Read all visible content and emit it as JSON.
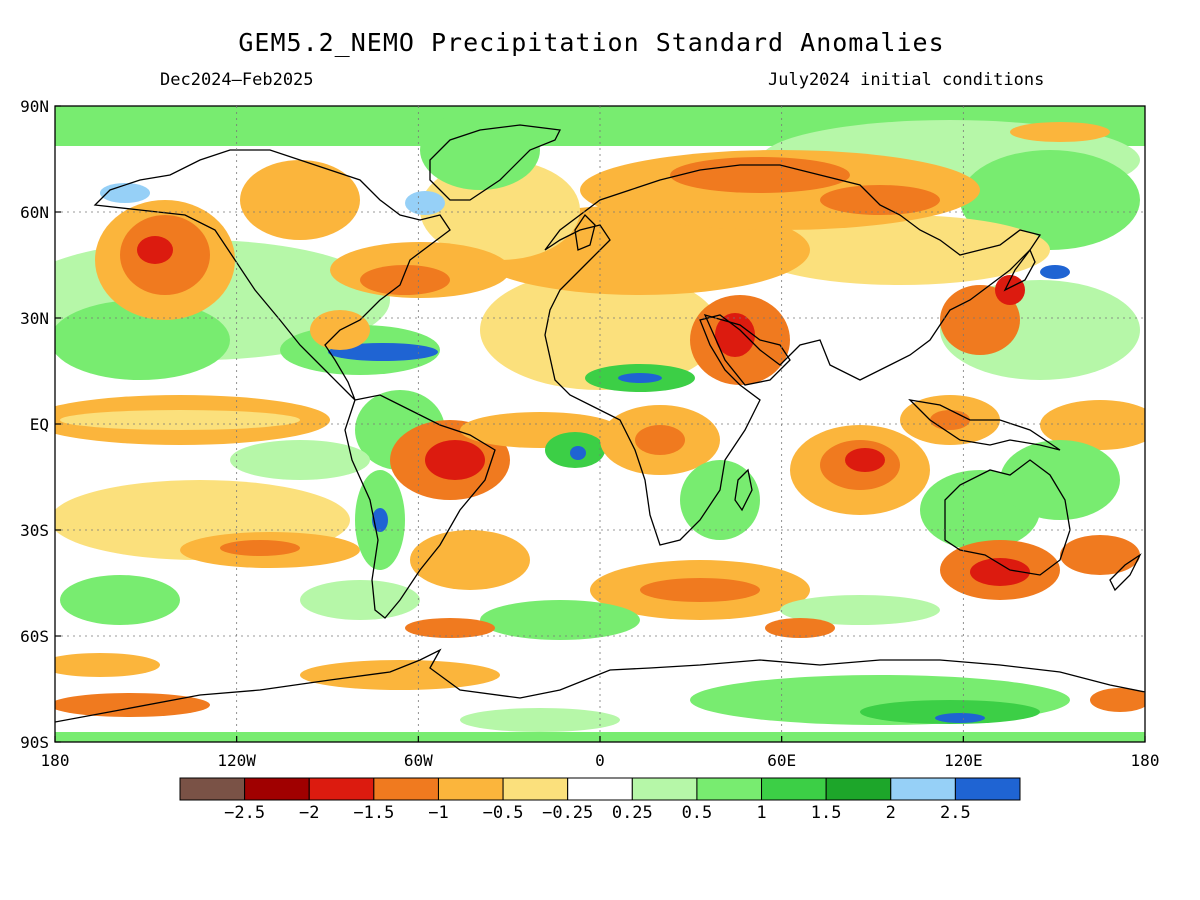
{
  "title": "GEM5.2_NEMO Precipitation Standard Anomalies",
  "subtitle_left": "Dec2024–Feb2025",
  "subtitle_right": "July2024 initial conditions",
  "lat_ticks": [
    {
      "value": 90,
      "label": "90N"
    },
    {
      "value": 60,
      "label": "60N"
    },
    {
      "value": 30,
      "label": "30N"
    },
    {
      "value": 0,
      "label": "EQ"
    },
    {
      "value": -30,
      "label": "30S"
    },
    {
      "value": -60,
      "label": "60S"
    },
    {
      "value": -90,
      "label": "90S"
    }
  ],
  "lon_ticks": [
    {
      "value": -180,
      "label": "180"
    },
    {
      "value": -120,
      "label": "120W"
    },
    {
      "value": -60,
      "label": "60W"
    },
    {
      "value": 0,
      "label": "0"
    },
    {
      "value": 60,
      "label": "60E"
    },
    {
      "value": 120,
      "label": "120E"
    },
    {
      "value": 180,
      "label": "180"
    }
  ],
  "colorbar": {
    "colors": [
      "#7a5246",
      "#a00000",
      "#dc1b0f",
      "#f07a1f",
      "#fbb53c",
      "#fbe07c",
      "#ffffff",
      "#b6f7a8",
      "#78ec70",
      "#3ccf46",
      "#1da62a",
      "#96d0f7",
      "#1f64d3"
    ],
    "labels": [
      "−2.5",
      "−2",
      "−1.5",
      "−1",
      "−0.5",
      "−0.25",
      "0.25",
      "0.5",
      "1",
      "1.5",
      "2",
      "2.5"
    ]
  },
  "palette": {
    "neutral": "#ffffff",
    "light_green": "#b6f7a8",
    "green": "#78ec70",
    "dark_green": "#3ccf46",
    "light_blue": "#96d0f7",
    "blue": "#1f64d3",
    "light_yellow": "#fbe07c",
    "orange": "#fbb53c",
    "dark_orange": "#f07a1f",
    "red": "#dc1b0f",
    "dark_red": "#a00000"
  }
}
